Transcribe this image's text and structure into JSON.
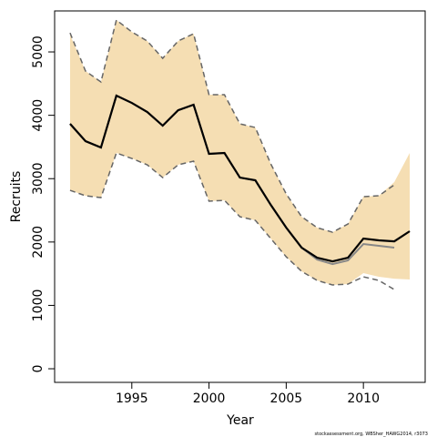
{
  "chart_data": {
    "type": "line",
    "xlabel": "Year",
    "ylabel": "Recruits",
    "footnote": "stockassessment.org, WBSher_HAWG2014, r3073",
    "x": [
      1991,
      1992,
      1993,
      1994,
      1995,
      1996,
      1997,
      1998,
      1999,
      2000,
      2001,
      2002,
      2003,
      2004,
      2005,
      2006,
      2007,
      2008,
      2009,
      2010,
      2011,
      2012,
      2013
    ],
    "xlim": [
      1990,
      2014
    ],
    "xticks": [
      1995,
      2000,
      2005,
      2010
    ],
    "ylim": [
      -215,
      5647
    ],
    "yticks": [
      0,
      1000,
      2000,
      3000,
      4000,
      5000
    ],
    "bands": [
      {
        "color": "#f5deb3",
        "upper": [
          5273,
          4698,
          4526,
          5503,
          5316,
          5172,
          4899,
          5172,
          5287,
          4325,
          4325,
          3865,
          3807,
          3233,
          2759,
          2399,
          2227,
          2155,
          2284,
          2716,
          2730,
          2945,
          3405
        ],
        "lower": [
          2816,
          2730,
          2701,
          3405,
          3319,
          3218,
          3017,
          3218,
          3276,
          2644,
          2658,
          2399,
          2342,
          2055,
          1767,
          1537,
          1394,
          1322,
          1336,
          1509,
          1451,
          1422,
          1408
        ]
      }
    ],
    "series": [
      {
        "color": "#666666",
        "style": "dashed",
        "width": 1.5,
        "values": [
          5300,
          4698,
          4526,
          5503,
          5316,
          5172,
          4899,
          5172,
          5287,
          4325,
          4325,
          3865,
          3807,
          3233,
          2759,
          2399,
          2227,
          2155,
          2284,
          2716,
          2730,
          2902,
          null
        ]
      },
      {
        "color": "#666666",
        "style": "dashed",
        "width": 1.5,
        "values": [
          2816,
          2730,
          2701,
          3405,
          3319,
          3218,
          3017,
          3218,
          3276,
          2644,
          2658,
          2399,
          2342,
          2055,
          1767,
          1537,
          1394,
          1322,
          1336,
          1451,
          1394,
          1250,
          null
        ]
      },
      {
        "color": "#888888",
        "style": "solid",
        "width": 2,
        "values": [
          3865,
          3592,
          3491,
          4310,
          4195,
          4052,
          3836,
          4080,
          4167,
          3391,
          3405,
          3017,
          2974,
          2586,
          2227,
          1911,
          1724,
          1652,
          1710,
          1968,
          1940,
          1911,
          null
        ]
      },
      {
        "color": "#000000",
        "style": "solid",
        "width": 2.2,
        "values": [
          3865,
          3592,
          3491,
          4310,
          4195,
          4052,
          3836,
          4080,
          4167,
          3391,
          3405,
          3017,
          2974,
          2586,
          2227,
          1911,
          1753,
          1695,
          1753,
          2055,
          2026,
          2011,
          2170
        ]
      }
    ]
  }
}
